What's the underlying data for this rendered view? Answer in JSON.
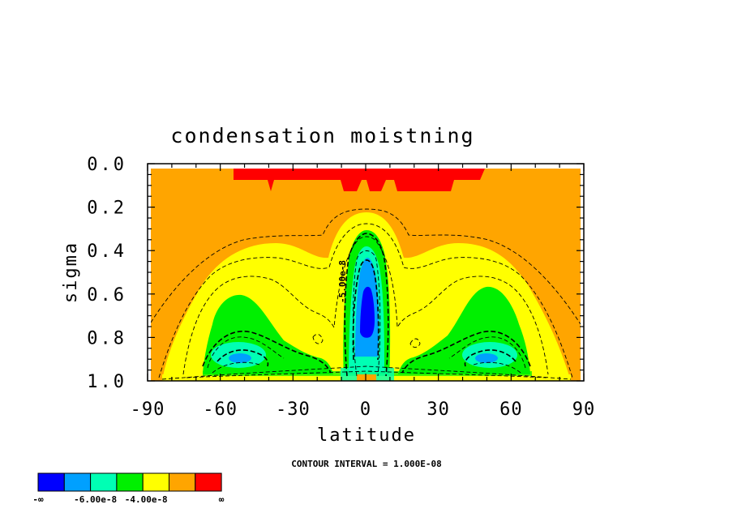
{
  "chart_data": {
    "type": "contour",
    "title": "condensation moistning",
    "xlabel": "latitude",
    "ylabel": "sigma",
    "x_ticks": [
      -90,
      -60,
      -30,
      0,
      30,
      60,
      90
    ],
    "y_ticks": [
      "0.0",
      "0.2",
      "0.4",
      "0.6",
      "0.8",
      "1.0"
    ],
    "xlim": [
      -90,
      90
    ],
    "ylim": [
      0,
      1
    ],
    "y_inverted": true,
    "contour_interval": "CONTOUR INTERVAL = 1.000E-08",
    "inline_label": "-5.00e-8",
    "colorbar": {
      "labels": [
        "-∞",
        "-6.00e-8",
        "-4.00e-8",
        "∞"
      ],
      "colors": [
        "#0000ff",
        "#00a0ff",
        "#00ffb4",
        "#00f000",
        "#ffff00",
        "#ffa500",
        "#ff0000"
      ]
    }
  }
}
